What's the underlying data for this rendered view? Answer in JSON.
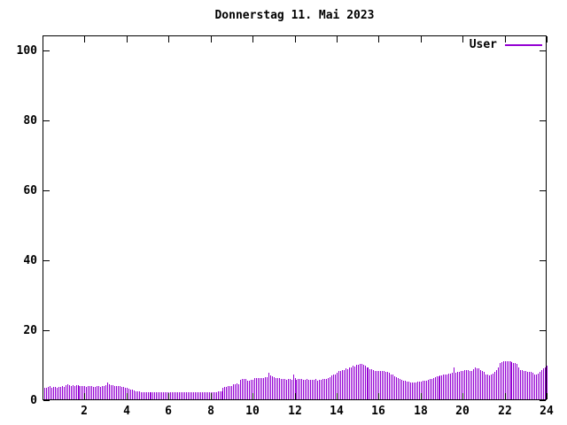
{
  "title": "Donnerstag 11. Mai 2023",
  "legend": {
    "label": "User"
  },
  "colors": {
    "series": "#9400d3",
    "axis": "#000000",
    "background": "#ffffff",
    "text": "#000000"
  },
  "chart_data": {
    "type": "bar",
    "style": "impulses",
    "title": "Donnerstag 11. Mai 2023",
    "xlabel": "",
    "ylabel": "",
    "x_unit": "hour-of-day",
    "interval_minutes": 5,
    "start_minute": 5,
    "xlim": [
      0,
      24
    ],
    "ylim": [
      0,
      100
    ],
    "x_ticks": [
      2,
      4,
      6,
      8,
      10,
      12,
      14,
      16,
      18,
      20,
      22,
      24
    ],
    "y_ticks": [
      0,
      20,
      40,
      60,
      80,
      100
    ],
    "grid": false,
    "legend_position": "top-right-inside",
    "series": [
      {
        "name": "User",
        "color": "#9400d3",
        "values": [
          3.2,
          3.4,
          3.5,
          3.7,
          3.3,
          3.5,
          3.6,
          3.4,
          3.5,
          3.6,
          3.8,
          3.6,
          4.0,
          4.2,
          4.0,
          3.9,
          4.1,
          3.8,
          4.0,
          4.1,
          3.8,
          3.9,
          3.7,
          3.8,
          3.6,
          3.7,
          3.9,
          3.7,
          3.5,
          3.6,
          3.8,
          3.7,
          3.6,
          3.7,
          3.8,
          4.0,
          4.8,
          4.2,
          4.0,
          4.1,
          3.9,
          3.8,
          3.8,
          3.7,
          3.6,
          3.5,
          3.4,
          3.3,
          3.0,
          2.9,
          2.7,
          2.6,
          2.4,
          2.3,
          2.2,
          2.1,
          2.1,
          2.0,
          2.0,
          2.1,
          2.0,
          2.0,
          2.1,
          2.0,
          2.0,
          2.1,
          2.0,
          2.0,
          2.1,
          2.0,
          2.0,
          2.0,
          2.1,
          2.0,
          2.0,
          2.1,
          2.0,
          2.0,
          2.1,
          2.0,
          2.0,
          2.1,
          2.0,
          2.0,
          2.0,
          2.1,
          2.0,
          2.0,
          2.1,
          2.0,
          2.0,
          2.1,
          2.0,
          2.1,
          2.0,
          2.1,
          2.1,
          2.0,
          2.1,
          2.2,
          2.2,
          2.3,
          3.3,
          3.5,
          3.6,
          3.7,
          3.8,
          3.9,
          4.2,
          4.3,
          4.5,
          4.4,
          5.6,
          5.8,
          5.9,
          5.7,
          5.2,
          5.3,
          5.5,
          5.6,
          6.0,
          6.1,
          6.2,
          6.1,
          6.0,
          6.2,
          6.3,
          6.4,
          7.6,
          6.9,
          6.5,
          6.4,
          6.2,
          6.1,
          6.0,
          5.9,
          5.8,
          5.7,
          5.6,
          5.7,
          5.8,
          5.6,
          7.0,
          6.2,
          5.6,
          5.7,
          5.8,
          5.7,
          5.5,
          5.6,
          5.7,
          5.6,
          5.5,
          5.6,
          5.6,
          5.7,
          5.4,
          5.5,
          5.6,
          5.7,
          5.8,
          5.9,
          6.2,
          6.4,
          6.8,
          7.0,
          7.2,
          7.6,
          8.0,
          8.2,
          8.4,
          8.3,
          8.8,
          8.6,
          9.2,
          9.0,
          9.6,
          9.4,
          9.8,
          9.9,
          10.0,
          10.1,
          9.8,
          9.6,
          9.2,
          9.0,
          8.6,
          8.5,
          8.3,
          8.2,
          8.1,
          8.2,
          8.1,
          8.2,
          8.0,
          7.9,
          7.8,
          7.6,
          7.2,
          7.0,
          6.6,
          6.4,
          6.1,
          5.9,
          5.6,
          5.4,
          5.2,
          5.1,
          5.0,
          4.9,
          4.8,
          4.9,
          4.9,
          5.0,
          5.0,
          5.1,
          5.2,
          5.3,
          5.4,
          5.5,
          5.7,
          5.9,
          6.1,
          6.3,
          6.5,
          6.6,
          6.8,
          6.9,
          7.0,
          7.1,
          7.2,
          7.3,
          7.4,
          7.5,
          9.1,
          7.7,
          7.8,
          7.9,
          8.0,
          8.1,
          8.4,
          8.3,
          8.3,
          8.2,
          8.1,
          8.5,
          9.1,
          8.9,
          8.8,
          8.4,
          8.1,
          7.8,
          7.1,
          7.0,
          6.8,
          7.0,
          7.4,
          7.8,
          8.4,
          9.2,
          10.5,
          10.7,
          10.8,
          10.9,
          10.8,
          10.9,
          10.8,
          10.6,
          10.5,
          10.3,
          10.1,
          9.2,
          8.4,
          8.3,
          8.1,
          8.0,
          7.8,
          7.9,
          7.8,
          7.6,
          7.1,
          7.2,
          7.4,
          7.8,
          8.4,
          8.8,
          9.2,
          9.6
        ]
      }
    ]
  }
}
